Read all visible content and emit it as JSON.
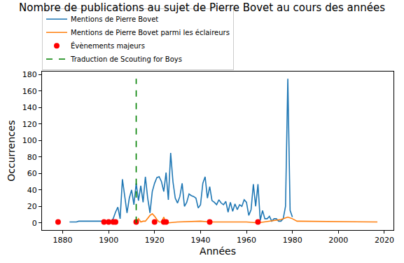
{
  "chart_data": {
    "type": "line",
    "title": "Nombre de publications au sujet de Pierre Bovet au cours des années",
    "x_label": "Années",
    "y_label": "Occurrences",
    "xlim": [
      1871,
      2024
    ],
    "xticks": [
      1880,
      1900,
      1920,
      1940,
      1960,
      1980,
      2000,
      2020
    ],
    "ylim": [
      -8.75,
      183.75
    ],
    "yticks": [
      0,
      20,
      40,
      60,
      80,
      100,
      120,
      140,
      160,
      180
    ],
    "grid": false,
    "legend": "upper left",
    "series": [
      {
        "name": "Mentions de Pierre Bovet",
        "color": "#1f77b4",
        "type": "line",
        "line_style": "solid",
        "x": [
          1883,
          1884,
          1885,
          1886,
          1887,
          1888,
          1889,
          1890,
          1891,
          1892,
          1893,
          1894,
          1895,
          1896,
          1897,
          1898,
          1899,
          1900,
          1901,
          1902,
          1903,
          1904,
          1905,
          1906,
          1907,
          1908,
          1909,
          1910,
          1911,
          1912,
          1913,
          1914,
          1915,
          1916,
          1917,
          1918,
          1919,
          1920,
          1921,
          1922,
          1923,
          1924,
          1925,
          1926,
          1927,
          1928,
          1929,
          1930,
          1931,
          1932,
          1933,
          1934,
          1935,
          1936,
          1937,
          1938,
          1939,
          1940,
          1941,
          1942,
          1943,
          1944,
          1945,
          1946,
          1947,
          1948,
          1949,
          1950,
          1951,
          1952,
          1953,
          1954,
          1955,
          1956,
          1957,
          1958,
          1959,
          1960,
          1961,
          1962,
          1963,
          1964,
          1965,
          1966,
          1967,
          1968,
          1969,
          1970,
          1971,
          1972,
          1973,
          1974,
          1975,
          1976,
          1977,
          1978,
          1979,
          1980
        ],
        "values": [
          1,
          1,
          1,
          1,
          2,
          2,
          2,
          2,
          2,
          2,
          2,
          2,
          2,
          2,
          2,
          2,
          2,
          2,
          2,
          5,
          13,
          19,
          5,
          53,
          30,
          12,
          30,
          40,
          22,
          48,
          27,
          45,
          25,
          56,
          30,
          12,
          38,
          48,
          55,
          56,
          50,
          38,
          61,
          28,
          85,
          50,
          30,
          24,
          32,
          48,
          20,
          25,
          35,
          33,
          32,
          30,
          18,
          22,
          48,
          56,
          30,
          44,
          27,
          25,
          22,
          28,
          24,
          22,
          26,
          13,
          25,
          14,
          23,
          16,
          22,
          20,
          28,
          25,
          9,
          16,
          47,
          20,
          47,
          3,
          15,
          5,
          5,
          8,
          2,
          5,
          5,
          2,
          2,
          5,
          20,
          175,
          15,
          7
        ]
      },
      {
        "name": "Mentions de Pierre Bovet parmi les éclaireurs",
        "color": "#ff7f0e",
        "type": "line",
        "line_style": "solid",
        "x": [
          1912,
          1913,
          1914,
          1915,
          1916,
          1917,
          1918,
          1919,
          1920,
          1921,
          1922,
          1923,
          1924,
          1925,
          1926,
          1930,
          1940,
          1944,
          1950,
          1960,
          1965,
          1970,
          1975,
          1978,
          1980,
          1982,
          2017
        ],
        "values": [
          0,
          5,
          1,
          2,
          2,
          6,
          9,
          11,
          8,
          4,
          1,
          1,
          7,
          0,
          0,
          1,
          2,
          1,
          1,
          1,
          0,
          2,
          4,
          7,
          5,
          2,
          1
        ]
      },
      {
        "name": "Évènements majeurs",
        "color": "#ff0000",
        "type": "scatter",
        "marker": "circle",
        "x": [
          1878,
          1898,
          1900,
          1902,
          1903,
          1912,
          1920,
          1924,
          1925,
          1944,
          1965
        ],
        "values": [
          1,
          1,
          1,
          1,
          1,
          1,
          1,
          1,
          1,
          1,
          1
        ]
      },
      {
        "name": "Traduction de Scouting for Boys",
        "color": "#008000",
        "type": "line",
        "line_style": "dashed",
        "x": [
          1912,
          1912
        ],
        "values": [
          0,
          175
        ]
      }
    ]
  }
}
